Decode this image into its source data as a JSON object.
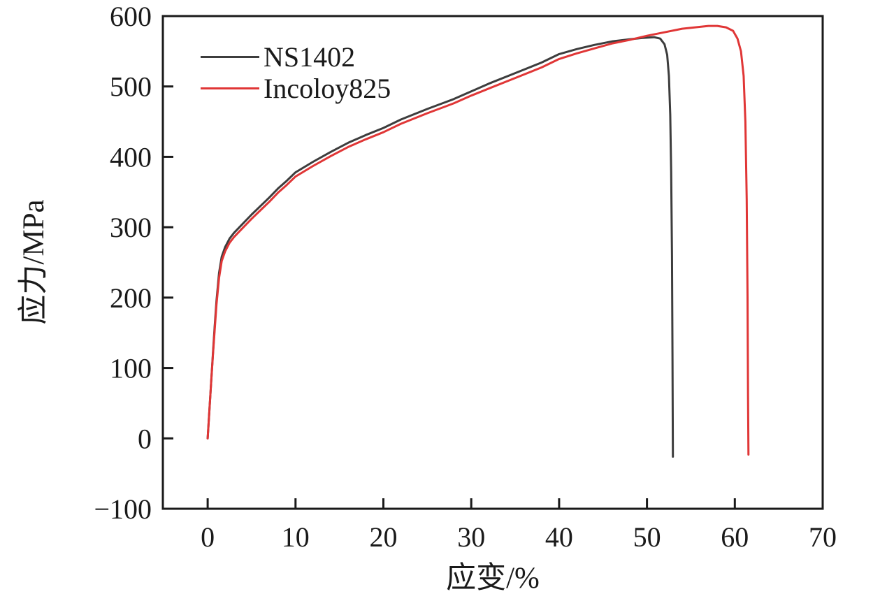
{
  "figure": {
    "background": "#ffffff",
    "axis_color": "#1a1a1a",
    "text_color": "#1a1a1a"
  },
  "chart_data": {
    "type": "line",
    "title": "",
    "xlabel": "应变/%",
    "ylabel": "应力/MPa",
    "xlim": [
      -5.1,
      70
    ],
    "ylim": [
      -100,
      600
    ],
    "x_ticks": [
      0,
      10,
      20,
      30,
      40,
      50,
      60,
      70
    ],
    "y_ticks": [
      -100,
      0,
      100,
      200,
      300,
      400,
      500,
      600
    ],
    "grid": false,
    "legend_position": "upper-left",
    "series": [
      {
        "name": "NS1402",
        "color": "#3d3d3d",
        "peak_stress_mpa": 570,
        "strain_at_peak_pct": 50.8,
        "fracture_strain_pct": 53.0,
        "points": [
          [
            0,
            0
          ],
          [
            0.2,
            40
          ],
          [
            0.4,
            80
          ],
          [
            0.6,
            120
          ],
          [
            0.8,
            160
          ],
          [
            1.0,
            195
          ],
          [
            1.3,
            235
          ],
          [
            1.6,
            258
          ],
          [
            2.0,
            272
          ],
          [
            2.5,
            284
          ],
          [
            3,
            292
          ],
          [
            4,
            305
          ],
          [
            5,
            318
          ],
          [
            6,
            330
          ],
          [
            7,
            342
          ],
          [
            8,
            355
          ],
          [
            9,
            366
          ],
          [
            10,
            378
          ],
          [
            12,
            393
          ],
          [
            14,
            407
          ],
          [
            16,
            420
          ],
          [
            18,
            431
          ],
          [
            20,
            441
          ],
          [
            22,
            453
          ],
          [
            25,
            468
          ],
          [
            28,
            482
          ],
          [
            30,
            493
          ],
          [
            32,
            504
          ],
          [
            35,
            519
          ],
          [
            38,
            534
          ],
          [
            40,
            546
          ],
          [
            42,
            553
          ],
          [
            44,
            559
          ],
          [
            46,
            564
          ],
          [
            48,
            567
          ],
          [
            49.5,
            569
          ],
          [
            50.8,
            570
          ],
          [
            51.5,
            568
          ],
          [
            52.0,
            560
          ],
          [
            52.3,
            545
          ],
          [
            52.5,
            515
          ],
          [
            52.65,
            460
          ],
          [
            52.75,
            380
          ],
          [
            52.85,
            260
          ],
          [
            52.9,
            120
          ],
          [
            52.95,
            -26
          ]
        ]
      },
      {
        "name": "Incoloy825",
        "color": "#e03636",
        "peak_stress_mpa": 586,
        "strain_at_peak_pct": 57.5,
        "fracture_strain_pct": 61.6,
        "points": [
          [
            0,
            0
          ],
          [
            0.2,
            40
          ],
          [
            0.4,
            80
          ],
          [
            0.6,
            118
          ],
          [
            0.8,
            155
          ],
          [
            1.0,
            190
          ],
          [
            1.3,
            228
          ],
          [
            1.6,
            252
          ],
          [
            2.0,
            266
          ],
          [
            2.5,
            278
          ],
          [
            3,
            286
          ],
          [
            4,
            299
          ],
          [
            5,
            312
          ],
          [
            6,
            324
          ],
          [
            7,
            336
          ],
          [
            8,
            349
          ],
          [
            9,
            360
          ],
          [
            10,
            372
          ],
          [
            12,
            387
          ],
          [
            14,
            401
          ],
          [
            16,
            414
          ],
          [
            18,
            425
          ],
          [
            20,
            435
          ],
          [
            22,
            447
          ],
          [
            25,
            462
          ],
          [
            28,
            476
          ],
          [
            30,
            487
          ],
          [
            32,
            497
          ],
          [
            35,
            512
          ],
          [
            38,
            527
          ],
          [
            40,
            539
          ],
          [
            42,
            547
          ],
          [
            44,
            554
          ],
          [
            46,
            561
          ],
          [
            48,
            566
          ],
          [
            50,
            572
          ],
          [
            52,
            577
          ],
          [
            54,
            582
          ],
          [
            55.5,
            584
          ],
          [
            57,
            586
          ],
          [
            58,
            586
          ],
          [
            59,
            584
          ],
          [
            59.8,
            579
          ],
          [
            60.3,
            568
          ],
          [
            60.7,
            550
          ],
          [
            61.0,
            515
          ],
          [
            61.2,
            450
          ],
          [
            61.35,
            340
          ],
          [
            61.45,
            200
          ],
          [
            61.5,
            60
          ],
          [
            61.55,
            -23
          ]
        ]
      }
    ]
  }
}
